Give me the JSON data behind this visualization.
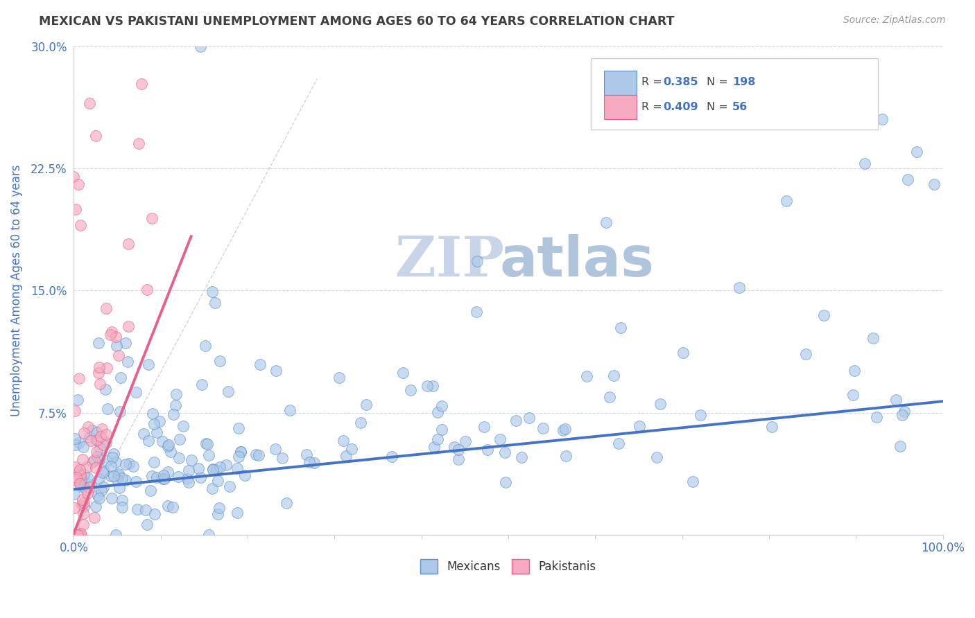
{
  "title": "MEXICAN VS PAKISTANI UNEMPLOYMENT AMONG AGES 60 TO 64 YEARS CORRELATION CHART",
  "source": "Source: ZipAtlas.com",
  "ylabel": "Unemployment Among Ages 60 to 64 years",
  "xlim": [
    0,
    1.0
  ],
  "ylim": [
    0,
    0.3
  ],
  "yticks": [
    0,
    0.075,
    0.15,
    0.225,
    0.3
  ],
  "ytick_labels": [
    "",
    "7.5%",
    "15.0%",
    "22.5%",
    "30.0%"
  ],
  "r_mexican": 0.385,
  "n_mexican": 198,
  "r_pakistani": 0.409,
  "n_pakistani": 56,
  "mexican_color": "#adc8e8",
  "pakistani_color": "#f5aabf",
  "mexican_edge_color": "#5b8fc9",
  "pakistani_edge_color": "#e8608a",
  "mexican_line_color": "#4472c4",
  "pakistani_line_color": "#e8608a",
  "ref_line_color": "#c8c8d0",
  "background_color": "#ffffff",
  "title_color": "#404040",
  "axis_label_color": "#4472c4",
  "legend_r_color": "#4472c4",
  "grid_color": "#c8d4e8",
  "watermark_color1": "#c8d4e8",
  "watermark_color2": "#b0c4dc"
}
